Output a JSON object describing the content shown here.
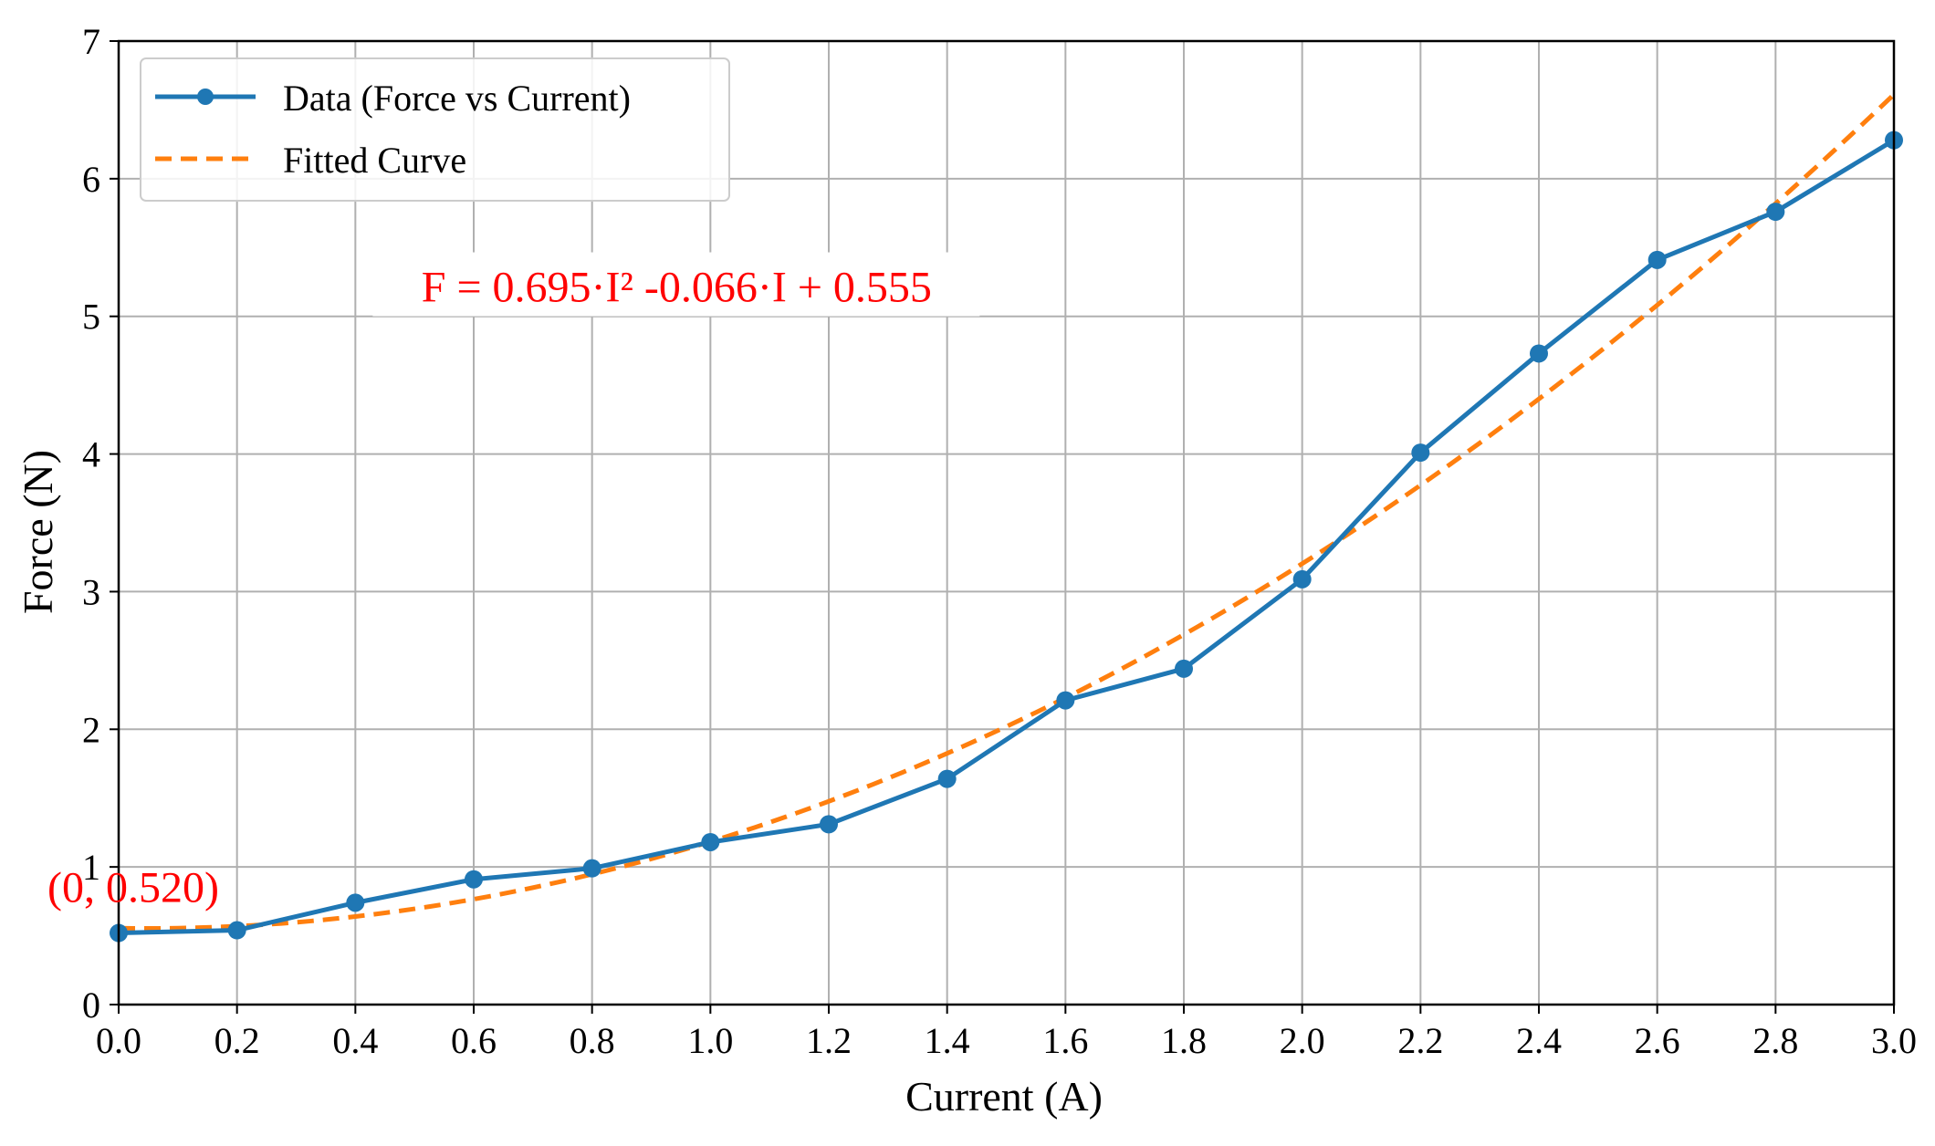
{
  "chart_data": {
    "type": "line",
    "title": "",
    "xlabel": "Current (A)",
    "ylabel": "Force (N)",
    "xlim": [
      0.0,
      3.0
    ],
    "ylim": [
      0,
      7
    ],
    "x_ticks": [
      "0.0",
      "0.2",
      "0.4",
      "0.6",
      "0.8",
      "1.0",
      "1.2",
      "1.4",
      "1.6",
      "1.8",
      "2.0",
      "2.2",
      "2.4",
      "2.6",
      "2.8",
      "3.0"
    ],
    "y_ticks": [
      "0",
      "1",
      "2",
      "3",
      "4",
      "5",
      "6",
      "7"
    ],
    "grid": true,
    "legend_position": "top-left",
    "series": [
      {
        "name": "Data (Force vs Current)",
        "style": "solid-line-with-markers",
        "color": "#1f77b4",
        "x": [
          0.0,
          0.2,
          0.4,
          0.6,
          0.8,
          1.0,
          1.2,
          1.4,
          1.6,
          1.8,
          2.0,
          2.2,
          2.4,
          2.6,
          2.8,
          3.0
        ],
        "y": [
          0.52,
          0.54,
          0.74,
          0.91,
          0.99,
          1.18,
          1.31,
          1.64,
          2.21,
          2.44,
          3.09,
          4.01,
          4.73,
          5.41,
          5.76,
          6.28
        ]
      },
      {
        "name": "Fitted Curve",
        "style": "dashed-line",
        "color": "#ff7f0e",
        "equation_coefficients": {
          "a": 0.695,
          "b": -0.066,
          "c": 0.555
        }
      }
    ],
    "annotations": [
      {
        "text": "F = 0.695·I² -0.066·I + 0.555",
        "x": 1.0,
        "y": 5.2,
        "color": "#ff0000"
      },
      {
        "text": "(0, 0.520)",
        "x": 0.0,
        "y": 0.84,
        "color": "#ff0000"
      }
    ]
  }
}
